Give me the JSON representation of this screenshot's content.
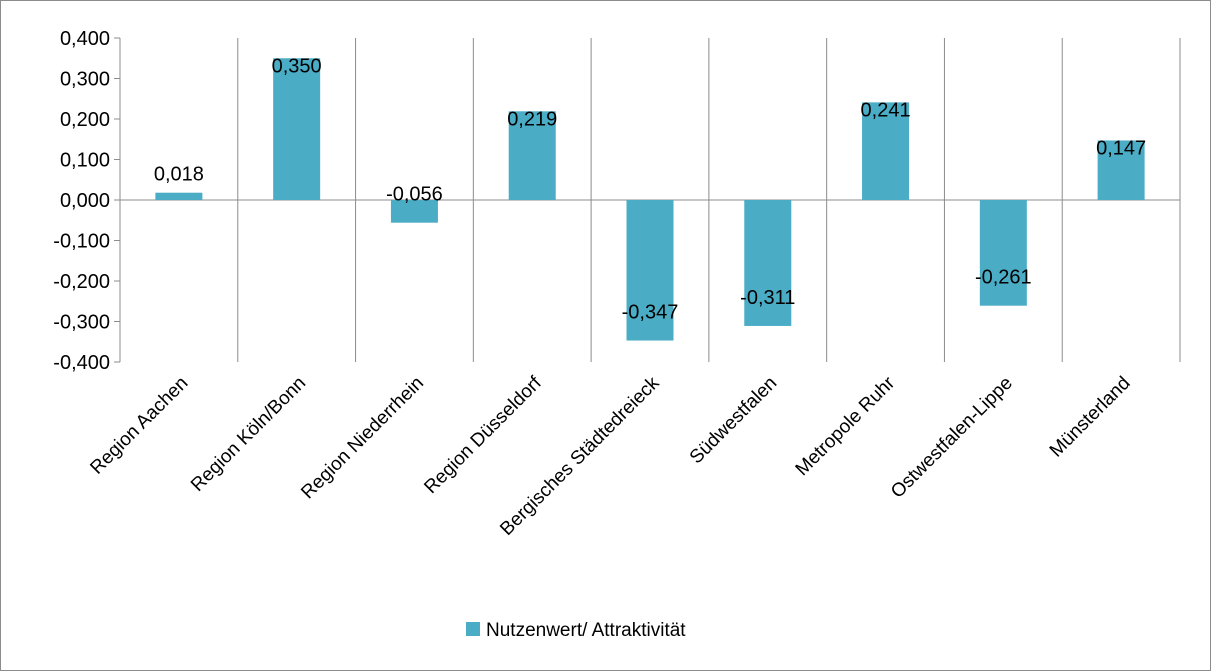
{
  "chart_data": {
    "type": "bar",
    "categories": [
      "Region Aachen",
      "Region Köln/Bonn",
      "Region Niederrhein",
      "Region Düsseldorf",
      "Bergisches Städtedreieck",
      "Südwestfalen",
      "Metropole Ruhr",
      "Ostwestfalen-Lippe",
      "Münsterland"
    ],
    "series": [
      {
        "name": "Nutzenwert/ Attraktivität",
        "values": [
          0.018,
          0.35,
          -0.056,
          0.219,
          -0.347,
          -0.311,
          0.241,
          -0.261,
          0.147
        ],
        "labels": [
          "0,018",
          "0,350",
          "-0,056",
          "0,219",
          "-0,347",
          "-0,311",
          "0,241",
          "-0,261",
          "0,147"
        ],
        "color": "#4bacc6"
      }
    ],
    "ylim": [
      -0.4,
      0.4
    ],
    "yticks": [
      0.4,
      0.3,
      0.2,
      0.1,
      0.0,
      -0.1,
      -0.2,
      -0.3,
      -0.4
    ],
    "ytick_labels": [
      "0,400",
      "0,300",
      "0,200",
      "0,100",
      "0,000",
      "-0,100",
      "-0,200",
      "-0,300",
      "-0,400"
    ],
    "grid": "vertical category separators",
    "legend": "bottom",
    "title": "",
    "xlabel": "",
    "ylabel": ""
  }
}
